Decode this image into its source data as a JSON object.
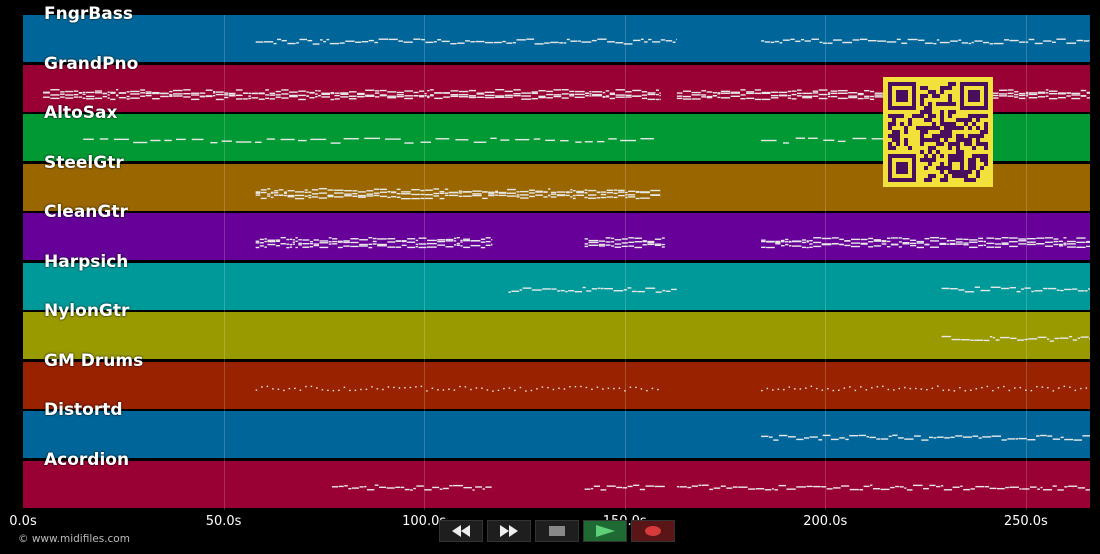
{
  "timeline": {
    "duration_s": 266,
    "tick_labels": [
      "0.0s",
      "50.0s",
      "100.0s",
      "150.0s",
      "200.0s",
      "250.0s"
    ],
    "tick_values": [
      0,
      50,
      100,
      150,
      200,
      250
    ]
  },
  "tracks": [
    {
      "name": "FngrBass",
      "color": "#006699",
      "segments": [
        [
          58,
          163
        ],
        [
          184,
          266
        ]
      ],
      "style": "line"
    },
    {
      "name": "GrandPno",
      "color": "#990033",
      "segments": [
        [
          5,
          159
        ],
        [
          163,
          266
        ]
      ],
      "style": "dense"
    },
    {
      "name": "AltoSax",
      "color": "#009933",
      "segments": [
        [
          15,
          158
        ],
        [
          184,
          215
        ]
      ],
      "style": "dashed"
    },
    {
      "name": "SteelGtr",
      "color": "#996600",
      "segments": [
        [
          58,
          159
        ]
      ],
      "style": "dense"
    },
    {
      "name": "CleanGtr",
      "color": "#660099",
      "segments": [
        [
          58,
          117
        ],
        [
          140,
          160
        ],
        [
          184,
          266
        ]
      ],
      "style": "dense"
    },
    {
      "name": "Harpsich",
      "color": "#009999",
      "segments": [
        [
          121,
          163
        ],
        [
          229,
          266
        ]
      ],
      "style": "line"
    },
    {
      "name": "NylonGtr",
      "color": "#999900",
      "segments": [
        [
          229,
          266
        ]
      ],
      "style": "line"
    },
    {
      "name": "GM Drums",
      "color": "#992200",
      "segments": [
        [
          58,
          159
        ],
        [
          184,
          266
        ]
      ],
      "style": "dots"
    },
    {
      "name": "Distortd",
      "color": "#006699",
      "segments": [
        [
          184,
          266
        ]
      ],
      "style": "line"
    },
    {
      "name": "Acordion",
      "color": "#990033",
      "segments": [
        [
          77,
          117
        ],
        [
          140,
          160
        ],
        [
          163,
          266
        ]
      ],
      "style": "line"
    }
  ],
  "copyright": "© www.midifiles.com",
  "controls": [
    {
      "name": "rewind-button",
      "icon": "rewind-icon"
    },
    {
      "name": "fast-forward-button",
      "icon": "fast-forward-icon"
    },
    {
      "name": "stop-button",
      "icon": "stop-icon"
    },
    {
      "name": "play-button",
      "icon": "play-icon"
    },
    {
      "name": "record-button",
      "icon": "record-icon"
    }
  ],
  "colors": {
    "background": "#000000",
    "note": "#e8e8e8",
    "qr_bg": "#f2e13a",
    "qr_fg": "#4a0f5c",
    "play": "#2fa84f",
    "record": "#cc2233"
  }
}
